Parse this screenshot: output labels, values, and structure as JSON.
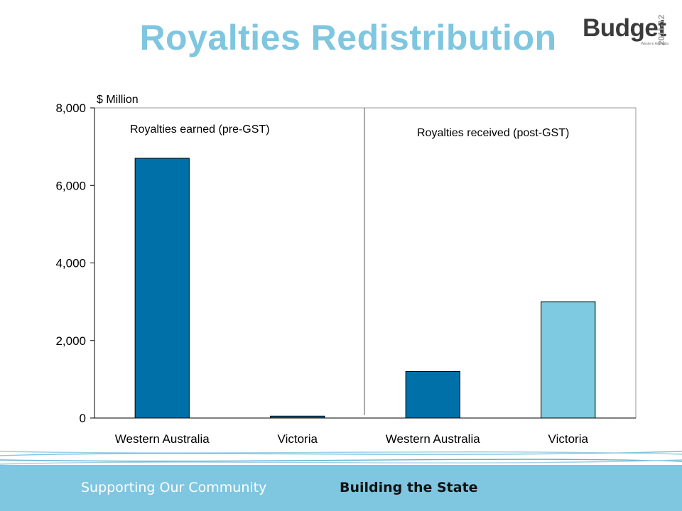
{
  "slide": {
    "title": "Royalties Redistribution",
    "logo": {
      "word": "Budget",
      "year": "2011-12",
      "sub": "Western Australia"
    },
    "footer": {
      "left": "Supporting Our Community",
      "right": "Building the State"
    }
  },
  "colors": {
    "title": "#7fc6e0",
    "wa_bar": "#0070a8",
    "vic_bar": "#7ecae0",
    "footer": "#7fc6e0"
  },
  "chart_data": {
    "type": "bar",
    "ylabel": "$ Million",
    "ylim": [
      0,
      8000
    ],
    "yticks": [
      0,
      2000,
      4000,
      6000,
      8000
    ],
    "ytick_labels": [
      "0",
      "2,000",
      "4,000",
      "6,000",
      "8,000"
    ],
    "grid": false,
    "categories": [
      "Western Australia",
      "Victoria",
      "Western Australia",
      "Victoria"
    ],
    "values": [
      6700,
      50,
      1200,
      3000
    ],
    "bar_colors": [
      "#0070a8",
      "#0070a8",
      "#0070a8",
      "#7ecae0"
    ],
    "groups": [
      {
        "label": "Royalties earned (pre-GST)",
        "categories": [
          0,
          1
        ]
      },
      {
        "label": "Royalties received (post-GST)",
        "categories": [
          2,
          3
        ]
      }
    ]
  }
}
